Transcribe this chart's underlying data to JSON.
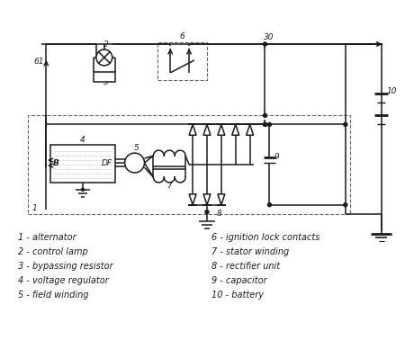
{
  "bg_color": "#ffffff",
  "line_color": "#1a1a1a",
  "dash_color": "#666666",
  "legend": [
    "1 - alternator",
    "2 - control lamp",
    "3 - bypassing resistor",
    "4 - voltage regulator",
    "5 - field winding",
    "6 - ignition lock contacts",
    "7 - stator winding",
    "8 - rectifier unit",
    "9 - capacitor",
    "10 - battery"
  ],
  "figsize": [
    4.5,
    3.78
  ],
  "dpi": 100
}
